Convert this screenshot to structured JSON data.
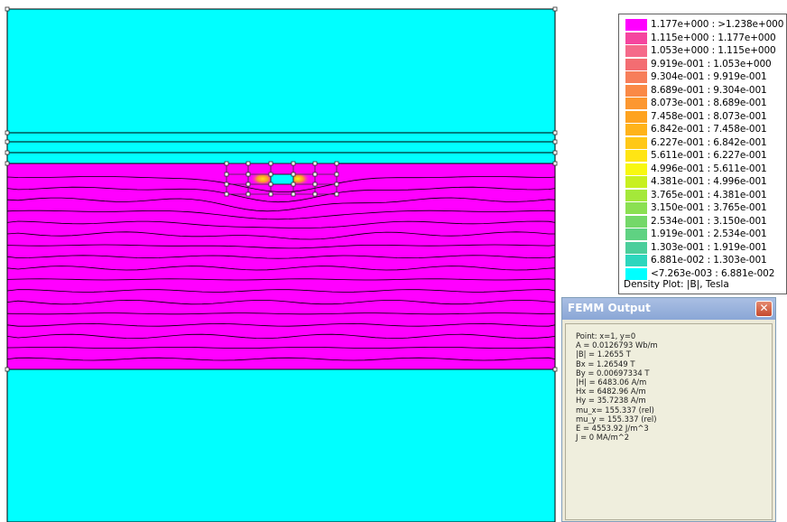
{
  "colors": {
    "air": "#00ffff",
    "iron": "#ff00ff",
    "outline": "#000000",
    "node": "#404040",
    "window_bg": "#ece9d8",
    "titlebar": "#9bb4de"
  },
  "legend": {
    "entries": [
      {
        "label": "1.177e+000 : >1.238e+000",
        "color": "#ff00ff"
      },
      {
        "label": "1.115e+000 : 1.177e+000",
        "color": "#f5459f"
      },
      {
        "label": "1.053e+000 : 1.115e+000",
        "color": "#f56a8a"
      },
      {
        "label": "9.919e-001 : 1.053e+000",
        "color": "#f36d72"
      },
      {
        "label": "9.304e-001 : 9.919e-001",
        "color": "#f77e5a"
      },
      {
        "label": "8.689e-001 : 9.304e-001",
        "color": "#fa8946"
      },
      {
        "label": "8.073e-001 : 8.689e-001",
        "color": "#fc9730"
      },
      {
        "label": "7.458e-001 : 8.073e-001",
        "color": "#fea320"
      },
      {
        "label": "6.842e-001 : 7.458e-001",
        "color": "#ffb31a"
      },
      {
        "label": "6.227e-001 : 6.842e-001",
        "color": "#ffc817"
      },
      {
        "label": "5.611e-001 : 6.227e-001",
        "color": "#ffe514"
      },
      {
        "label": "4.996e-001 : 5.611e-001",
        "color": "#f8f810"
      },
      {
        "label": "4.381e-001 : 4.996e-001",
        "color": "#c8f020"
      },
      {
        "label": "3.765e-001 : 4.381e-001",
        "color": "#a4e83a"
      },
      {
        "label": "3.150e-001 : 3.765e-001",
        "color": "#8be052"
      },
      {
        "label": "2.534e-001 : 3.150e-001",
        "color": "#74d869"
      },
      {
        "label": "1.919e-001 : 2.534e-001",
        "color": "#5fd282"
      },
      {
        "label": "1.303e-001 : 1.919e-001",
        "color": "#4bce9b"
      },
      {
        "label": "6.881e-002 : 1.303e-001",
        "color": "#2dd6bd"
      },
      {
        "label": "<7.263e-003 : 6.881e-002",
        "color": "#00ffff"
      }
    ],
    "caption": "Density Plot: |B|, Tesla"
  },
  "output_window": {
    "title": "FEMM Output",
    "close_glyph": "✕",
    "lines": [
      "Point: x=1, y=0",
      "A  = 0.0126793 Wb/m",
      "|B| = 1.2655 T",
      "Bx  = 1.26549 T",
      "By  = 0.00697334 T",
      "|H| = 6483.06 A/m",
      "Hx  = 6482.96 A/m",
      "Hy  = 35.7238 A/m",
      "mu_x= 155.337 (rel)",
      "mu_y = 155.337 (rel)",
      "E  = 4553.92 J/m^3",
      "J  = 0 MA/m^2"
    ]
  }
}
